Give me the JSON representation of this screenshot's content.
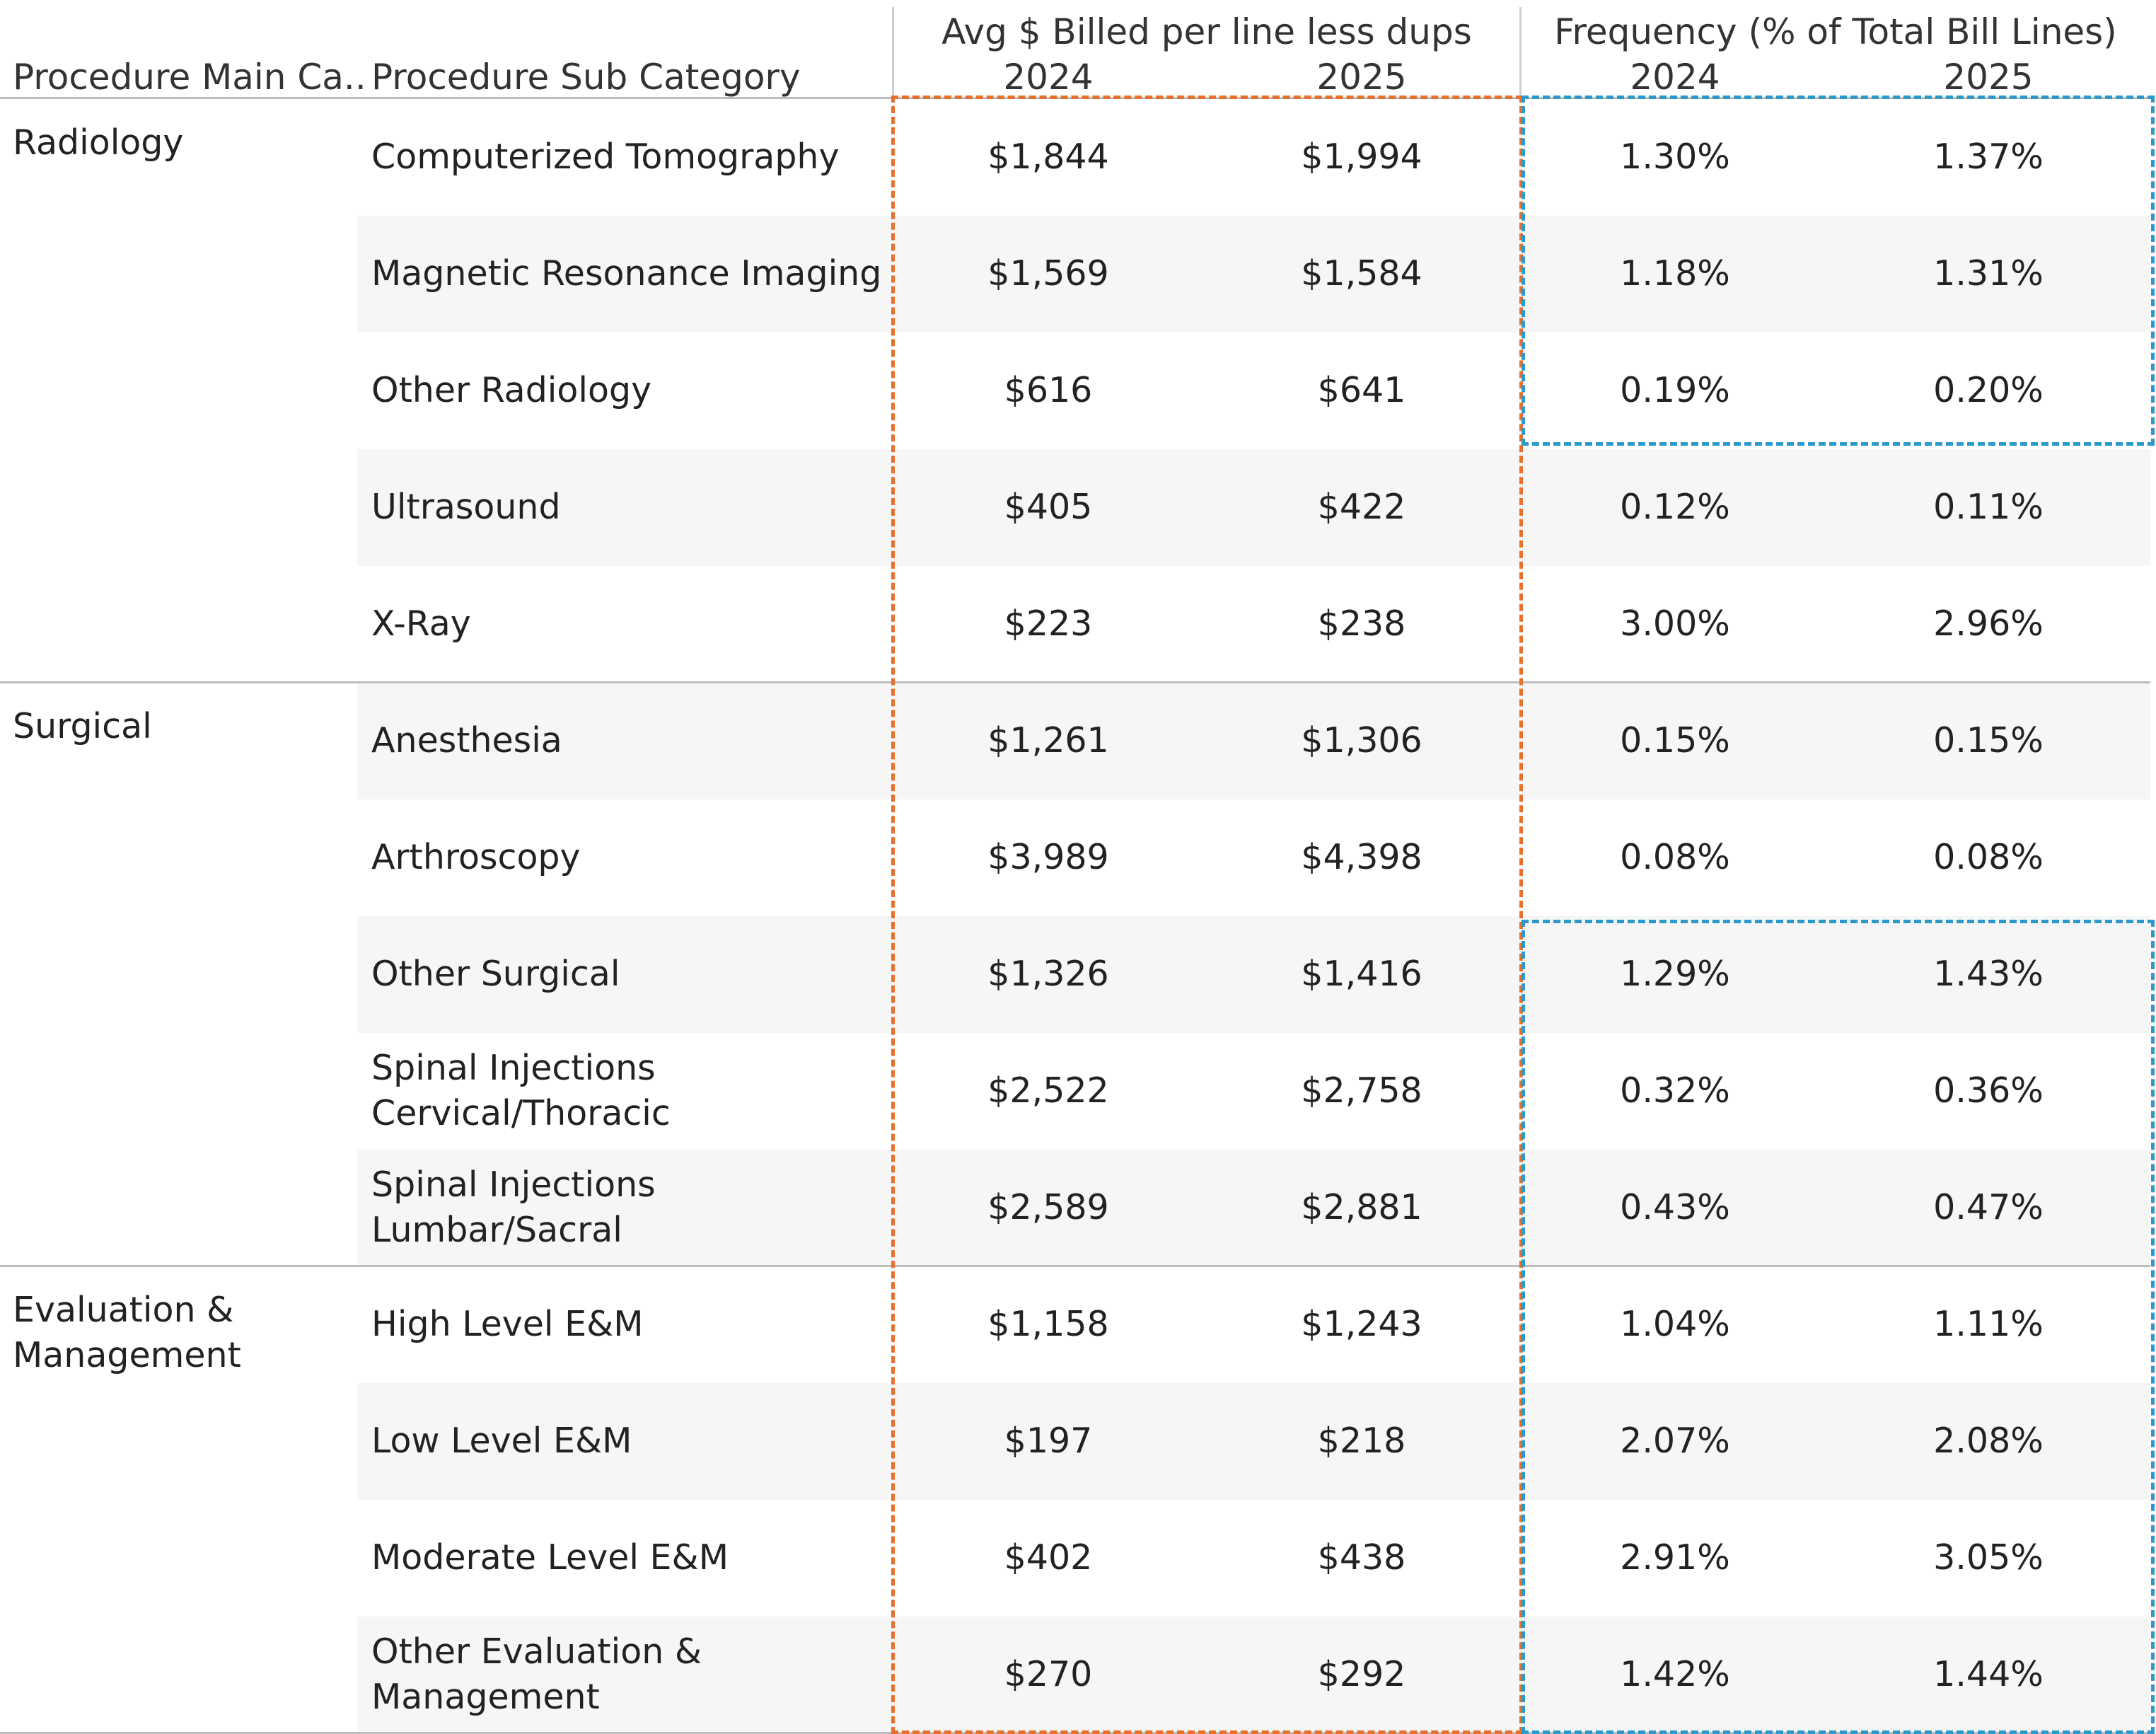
{
  "chart_data": {
    "type": "table",
    "headers": {
      "main_category": "Procedure Main Ca..",
      "sub_category": "Procedure Sub Category",
      "billed_group": "Avg $ Billed per line less dups",
      "frequency_group": "Frequency (% of Total Bill Lines)",
      "years": [
        "2024",
        "2025"
      ]
    },
    "groups": [
      {
        "category": "Radiology",
        "rows": [
          {
            "sub": "Computerized Tomography",
            "billed": [
              "$1,844",
              "$1,994"
            ],
            "freq": [
              "1.30%",
              "1.37%"
            ]
          },
          {
            "sub": "Magnetic Resonance Imaging",
            "billed": [
              "$1,569",
              "$1,584"
            ],
            "freq": [
              "1.18%",
              "1.31%"
            ]
          },
          {
            "sub": "Other Radiology",
            "billed": [
              "$616",
              "$641"
            ],
            "freq": [
              "0.19%",
              "0.20%"
            ]
          },
          {
            "sub": "Ultrasound",
            "billed": [
              "$405",
              "$422"
            ],
            "freq": [
              "0.12%",
              "0.11%"
            ]
          },
          {
            "sub": "X-Ray",
            "billed": [
              "$223",
              "$238"
            ],
            "freq": [
              "3.00%",
              "2.96%"
            ]
          }
        ]
      },
      {
        "category": "Surgical",
        "rows": [
          {
            "sub": "Anesthesia",
            "billed": [
              "$1,261",
              "$1,306"
            ],
            "freq": [
              "0.15%",
              "0.15%"
            ]
          },
          {
            "sub": "Arthroscopy",
            "billed": [
              "$3,989",
              "$4,398"
            ],
            "freq": [
              "0.08%",
              "0.08%"
            ]
          },
          {
            "sub": "Other Surgical",
            "billed": [
              "$1,326",
              "$1,416"
            ],
            "freq": [
              "1.29%",
              "1.43%"
            ]
          },
          {
            "sub": "Spinal Injections Cervical/Thoracic",
            "billed": [
              "$2,522",
              "$2,758"
            ],
            "freq": [
              "0.32%",
              "0.36%"
            ]
          },
          {
            "sub": "Spinal Injections Lumbar/Sacral",
            "billed": [
              "$2,589",
              "$2,881"
            ],
            "freq": [
              "0.43%",
              "0.47%"
            ]
          }
        ]
      },
      {
        "category": "Evaluation & Management",
        "rows": [
          {
            "sub": "High Level E&M",
            "billed": [
              "$1,158",
              "$1,243"
            ],
            "freq": [
              "1.04%",
              "1.11%"
            ]
          },
          {
            "sub": "Low Level E&M",
            "billed": [
              "$197",
              "$218"
            ],
            "freq": [
              "2.07%",
              "2.08%"
            ]
          },
          {
            "sub": "Moderate Level E&M",
            "billed": [
              "$402",
              "$438"
            ],
            "freq": [
              "2.91%",
              "3.05%"
            ]
          },
          {
            "sub": "Other Evaluation & Management",
            "billed": [
              "$270",
              "$292"
            ],
            "freq": [
              "1.42%",
              "1.44%"
            ]
          }
        ]
      }
    ],
    "highlight_colors": {
      "billed_columns": "#e8702a",
      "frequency_rows": "#2b9acb"
    }
  }
}
